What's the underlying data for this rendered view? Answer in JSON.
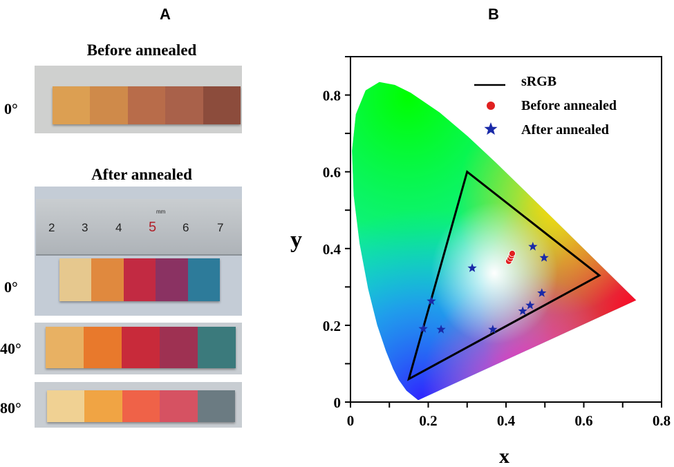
{
  "panel_a": {
    "letter": "A",
    "before_title": "Before annealed",
    "after_title": "After annealed",
    "angles": [
      "0°",
      "0°",
      "40°",
      "80°"
    ],
    "ruler_numbers": [
      "2",
      "3",
      "4",
      "5",
      "6",
      "7"
    ],
    "ruler_unit": "mm",
    "strips": {
      "before_0": [
        "#dc9f52",
        "#cf8a4a",
        "#b86c4a",
        "#a9614a",
        "#8c4c3c"
      ],
      "after_0": [
        "#e6c88e",
        "#e0893e",
        "#c22a42",
        "#8a3262",
        "#2d7b9a"
      ],
      "after_40": [
        "#e8b163",
        "#e8792c",
        "#c82a3a",
        "#9e3152",
        "#3b7a7c"
      ],
      "after_80": [
        "#f0d193",
        "#f0a444",
        "#ef6248",
        "#d65262",
        "#6b7b82"
      ]
    }
  },
  "chart_data": {
    "type": "scatter",
    "panel_letter": "B",
    "xlabel": "x",
    "ylabel": "y",
    "xlim": [
      0,
      0.8
    ],
    "ylim": [
      0,
      0.9
    ],
    "xticks": [
      "0",
      "0.2",
      "0.4",
      "0.6",
      "0.8"
    ],
    "yticks": [
      "0",
      "0.2",
      "0.4",
      "0.6",
      "0.8"
    ],
    "grid": false,
    "legend_position": "top-right",
    "background": "CIE 1931 chromaticity diagram",
    "series": [
      {
        "name": "sRGB",
        "kind": "polygon",
        "color": "#000000",
        "points": [
          [
            0.64,
            0.33
          ],
          [
            0.3,
            0.6
          ],
          [
            0.15,
            0.06
          ]
        ]
      },
      {
        "name": "Before annealed",
        "kind": "circle",
        "color": "#e02020",
        "points": [
          [
            0.407,
            0.367
          ],
          [
            0.411,
            0.374
          ],
          [
            0.414,
            0.381
          ],
          [
            0.416,
            0.387
          ]
        ]
      },
      {
        "name": "After annealed",
        "kind": "star",
        "color": "#1a2aa8",
        "points": [
          [
            0.187,
            0.191
          ],
          [
            0.208,
            0.263
          ],
          [
            0.233,
            0.189
          ],
          [
            0.313,
            0.349
          ],
          [
            0.366,
            0.189
          ],
          [
            0.443,
            0.237
          ],
          [
            0.462,
            0.252
          ],
          [
            0.469,
            0.405
          ],
          [
            0.492,
            0.284
          ],
          [
            0.498,
            0.376
          ]
        ]
      }
    ]
  }
}
